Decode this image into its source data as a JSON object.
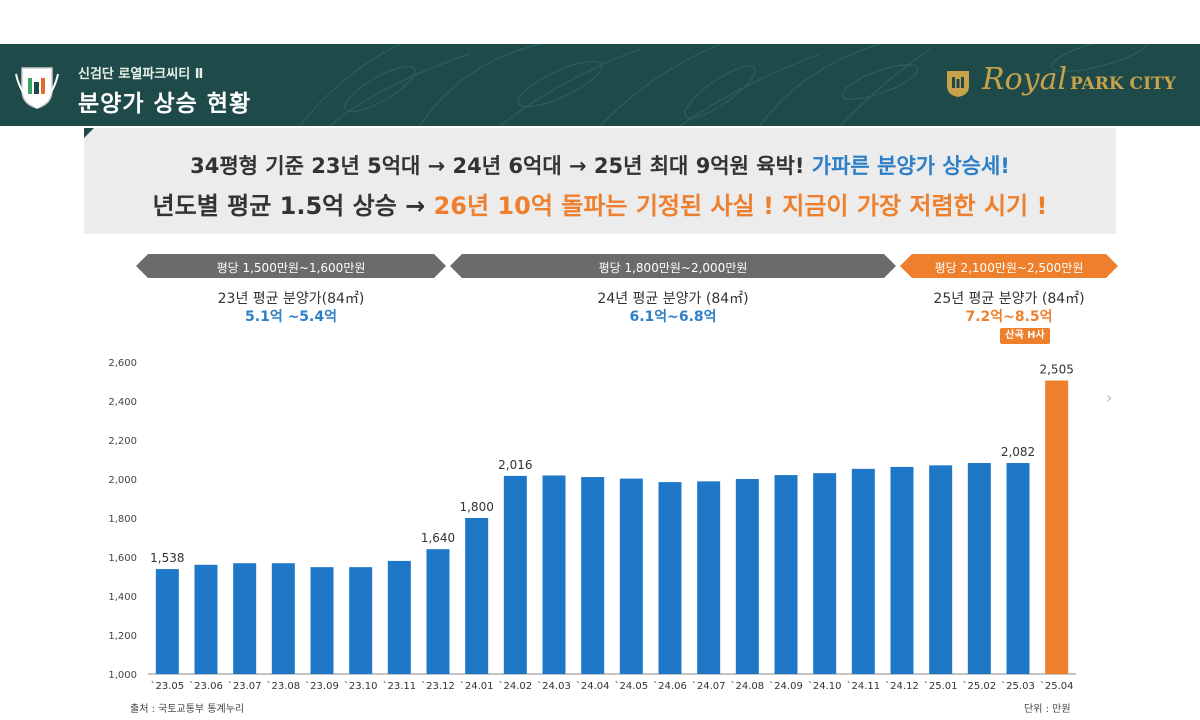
{
  "header": {
    "subtitle": "신검단 로열파크씨티 Ⅱ",
    "title": "분양가 상승 현황",
    "brand_royal": "Royal",
    "brand_parkcity": "PARK CITY",
    "bg_color": "#1e4a4a",
    "logo_left_icon": "crest-logo-icon",
    "logo_right_icon": "gold-crest-icon"
  },
  "banner": {
    "line1_main": "34평형 기준 23년 5억대 → 24년 6억대 → 25년 최대 9억원 육박!",
    "line1_highlight": "가파른 분양가 상승세!",
    "line2_main": "년도별 평균 1.5억 상승 →",
    "line2_highlight": "26년 10억 돌파는 기정된 사실 ! 지금이 가장 저렴한 시기 !"
  },
  "periods": [
    {
      "label": "평당 1,500만원~1,600만원",
      "title": "23년 평균 분양가(84㎡)",
      "range": "5.1억 ~5.4억",
      "color": "#6b6b6b",
      "range_color": "#2d7fc8"
    },
    {
      "label": "평당 1,800만원~2,000만원",
      "title": "24년 평균 분양가 (84㎡)",
      "range": "6.1억~6.8억",
      "color": "#6b6b6b",
      "range_color": "#2d7fc8"
    },
    {
      "label": "평당 2,100만원~2,500만원",
      "title": "25년 평균 분양가 (84㎡)",
      "range": "7.2억~8.5억",
      "color": "#ee7f2d",
      "range_color": "#ee7f2d"
    }
  ],
  "tag": "산곡 H사",
  "source": "출처 : 국토교통부 통계누리",
  "unit": "단위 : 만원",
  "chart_data": {
    "type": "bar",
    "categories": [
      "`23.05",
      "`23.06",
      "`23.07",
      "`23.08",
      "`23.09",
      "`23.10",
      "`23.11",
      "`23.12",
      "`24.01",
      "`24.02",
      "`24.03",
      "`24.04",
      "`24.05",
      "`24.06",
      "`24.07",
      "`24.08",
      "`24.09",
      "`24.10",
      "`24.11",
      "`24.12",
      "`25.01",
      "`25.02",
      "`25.03",
      "`25.04"
    ],
    "values": [
      1538,
      1560,
      1568,
      1568,
      1548,
      1548,
      1580,
      1640,
      1800,
      2016,
      2018,
      2010,
      2002,
      1984,
      1988,
      2000,
      2020,
      2030,
      2052,
      2062,
      2070,
      2082,
      2082,
      2505
    ],
    "data_labels": {
      "0": "1,538",
      "7": "1,640",
      "8": "1,800",
      "9": "2,016",
      "22": "2,082",
      "23": "2,505"
    },
    "ylim": [
      1000,
      2600
    ],
    "yticks": [
      1000,
      1200,
      1400,
      1600,
      1800,
      2000,
      2200,
      2400,
      2600
    ],
    "ytick_labels": [
      "1,000",
      "1,200",
      "1,400",
      "1,600",
      "1,800",
      "2,000",
      "2,200",
      "2,400",
      "2,600"
    ],
    "bar_color": "#1f77c8",
    "highlight_color": "#ee7f2d",
    "highlight_index": 23,
    "title": "",
    "xlabel": "",
    "ylabel": ""
  }
}
